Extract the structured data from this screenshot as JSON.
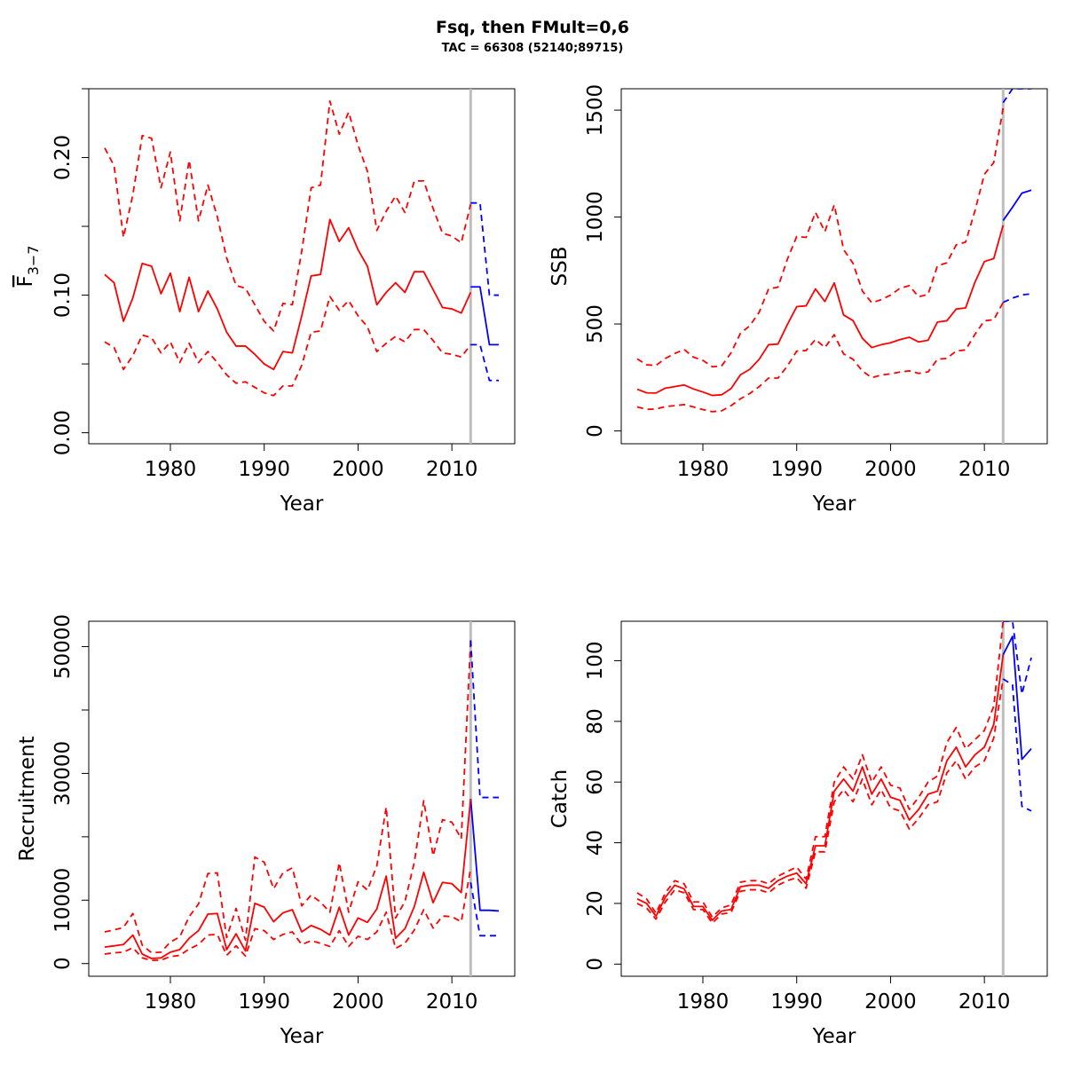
{
  "title": "Fsq, then FMult=0,6",
  "subtitle": "TAC = 66308 (52140;89715)",
  "colors": {
    "historic": "#ff0000",
    "forecast": "#0000ff",
    "divider": "#bebebe"
  },
  "chart_data": [
    {
      "type": "line",
      "ylabel": "F",
      "ylabel_sub": "3−7",
      "xlabel": "Year",
      "xlim": [
        1971.3,
        2016.7
      ],
      "ylim": [
        -0.008,
        0.25
      ],
      "xticks": [
        1980,
        1990,
        2000,
        2010
      ],
      "yticks": [
        0,
        0.05,
        0.1,
        0.15,
        0.2,
        0.25
      ],
      "ytick_labels": [
        "0.00",
        "",
        "0.10",
        "",
        "0.20",
        ""
      ],
      "divider_x": 2012,
      "historic": {
        "x": [
          1973,
          1974,
          1975,
          1976,
          1977,
          1978,
          1979,
          1980,
          1981,
          1982,
          1983,
          1984,
          1985,
          1986,
          1987,
          1988,
          1989,
          1990,
          1991,
          1992,
          1993,
          1994,
          1995,
          1996,
          1997,
          1998,
          1999,
          2000,
          2001,
          2002,
          2003,
          2004,
          2005,
          2006,
          2007,
          2008,
          2009,
          2010,
          2011,
          2012
        ],
        "mid": [
          0.115,
          0.109,
          0.081,
          0.098,
          0.123,
          0.121,
          0.101,
          0.116,
          0.088,
          0.113,
          0.088,
          0.103,
          0.09,
          0.073,
          0.063,
          0.063,
          0.057,
          0.05,
          0.046,
          0.059,
          0.058,
          0.085,
          0.114,
          0.115,
          0.155,
          0.139,
          0.149,
          0.133,
          0.121,
          0.093,
          0.102,
          0.109,
          0.102,
          0.117,
          0.117,
          0.104,
          0.091,
          0.09,
          0.087,
          0.102
        ],
        "lower": [
          0.066,
          0.062,
          0.046,
          0.056,
          0.071,
          0.069,
          0.058,
          0.066,
          0.051,
          0.065,
          0.051,
          0.059,
          0.051,
          0.042,
          0.036,
          0.037,
          0.033,
          0.029,
          0.027,
          0.034,
          0.034,
          0.049,
          0.073,
          0.074,
          0.099,
          0.089,
          0.096,
          0.085,
          0.077,
          0.059,
          0.065,
          0.07,
          0.066,
          0.075,
          0.075,
          0.067,
          0.058,
          0.057,
          0.055,
          0.064
        ],
        "upper": [
          0.207,
          0.194,
          0.142,
          0.173,
          0.216,
          0.214,
          0.178,
          0.204,
          0.154,
          0.198,
          0.154,
          0.18,
          0.157,
          0.127,
          0.107,
          0.105,
          0.093,
          0.081,
          0.074,
          0.094,
          0.093,
          0.132,
          0.178,
          0.18,
          0.241,
          0.217,
          0.233,
          0.209,
          0.19,
          0.147,
          0.161,
          0.172,
          0.16,
          0.183,
          0.183,
          0.163,
          0.145,
          0.143,
          0.138,
          0.166
        ]
      },
      "forecast": {
        "x": [
          2012,
          2013,
          2014,
          2015
        ],
        "mid": [
          0.106,
          0.106,
          0.064,
          0.064
        ],
        "lower": [
          0.064,
          0.064,
          0.038,
          0.038
        ],
        "upper": [
          0.167,
          0.167,
          0.1,
          0.1
        ]
      }
    },
    {
      "type": "line",
      "ylabel": "SSB",
      "xlabel": "Year",
      "xlim": [
        1971.3,
        2016.7
      ],
      "ylim": [
        -60,
        1600
      ],
      "xticks": [
        1980,
        1990,
        2000,
        2010
      ],
      "yticks": [
        0,
        500,
        1000,
        1500
      ],
      "ytick_labels": [
        "0",
        "500",
        "1000",
        "1500"
      ],
      "divider_x": 2012,
      "historic": {
        "x": [
          1973,
          1974,
          1975,
          1976,
          1977,
          1978,
          1979,
          1980,
          1981,
          1982,
          1983,
          1984,
          1985,
          1986,
          1987,
          1988,
          1989,
          1990,
          1991,
          1992,
          1993,
          1994,
          1995,
          1996,
          1997,
          1998,
          1999,
          2000,
          2001,
          2002,
          2003,
          2004,
          2005,
          2006,
          2007,
          2008,
          2009,
          2010,
          2011,
          2012
        ],
        "mid": [
          195,
          178,
          177,
          200,
          207,
          215,
          196,
          182,
          166,
          169,
          198,
          262,
          288,
          335,
          403,
          406,
          497,
          581,
          585,
          664,
          605,
          692,
          542,
          516,
          433,
          390,
          403,
          412,
          427,
          438,
          416,
          424,
          509,
          515,
          570,
          575,
          696,
          792,
          806,
          962
        ],
        "lower": [
          112,
          101,
          102,
          114,
          118,
          123,
          112,
          100,
          90,
          94,
          118,
          150,
          175,
          207,
          247,
          247,
          303,
          373,
          376,
          428,
          390,
          450,
          360,
          335,
          280,
          249,
          261,
          267,
          275,
          281,
          269,
          276,
          335,
          339,
          374,
          379,
          452,
          515,
          520,
          601
        ],
        "upper": [
          337,
          309,
          306,
          339,
          362,
          381,
          345,
          330,
          300,
          304,
          365,
          456,
          492,
          555,
          664,
          672,
          802,
          909,
          905,
          1022,
          932,
          1057,
          848,
          784,
          654,
          599,
          614,
          635,
          667,
          679,
          627,
          639,
          772,
          786,
          870,
          883,
          1030,
          1200,
          1255,
          1510
        ]
      },
      "forecast": {
        "x": [
          2012,
          2013,
          2014,
          2015
        ],
        "mid": [
          984,
          1046,
          1112,
          1126
        ],
        "lower": [
          601,
          621,
          636,
          641
        ],
        "upper": [
          1535,
          1600,
          1600,
          1600
        ]
      }
    },
    {
      "type": "line",
      "ylabel": "Recruitment",
      "xlabel": "Year",
      "xlim": [
        1971.3,
        2016.7
      ],
      "ylim": [
        -2000,
        54000
      ],
      "xticks": [
        1980,
        1990,
        2000,
        2010
      ],
      "yticks": [
        0,
        10000,
        20000,
        30000,
        40000,
        50000
      ],
      "ytick_labels": [
        "0",
        "10000",
        "",
        "30000",
        "",
        "50000"
      ],
      "divider_x": 2012,
      "historic": {
        "x": [
          1973,
          1974,
          1975,
          1976,
          1977,
          1978,
          1979,
          1980,
          1981,
          1982,
          1983,
          1984,
          1985,
          1986,
          1987,
          1988,
          1989,
          1990,
          1991,
          1992,
          1993,
          1994,
          1995,
          1996,
          1997,
          1998,
          1999,
          2000,
          2001,
          2002,
          2003,
          2004,
          2005,
          2006,
          2007,
          2008,
          2009,
          2010,
          2011,
          2012
        ],
        "mid": [
          2600,
          2800,
          3000,
          4500,
          1500,
          800,
          900,
          1800,
          2200,
          4000,
          5200,
          7800,
          7900,
          2200,
          4700,
          2000,
          9500,
          8900,
          6600,
          8000,
          8500,
          5000,
          6000,
          5400,
          4500,
          8900,
          4500,
          7200,
          6500,
          8600,
          13800,
          4000,
          5500,
          9000,
          14400,
          9600,
          12800,
          12600,
          11200,
          26000
        ],
        "lower": [
          1500,
          1700,
          1800,
          2500,
          900,
          500,
          550,
          1100,
          1300,
          2300,
          3000,
          4500,
          4600,
          1300,
          2800,
          1200,
          5500,
          5200,
          3800,
          4600,
          5000,
          3000,
          3600,
          3200,
          2700,
          5200,
          2700,
          4300,
          3800,
          5000,
          8100,
          2400,
          3200,
          5300,
          8500,
          5600,
          7500,
          7400,
          6600,
          15000
        ],
        "upper": [
          5000,
          5300,
          5700,
          7900,
          2900,
          1700,
          1800,
          3400,
          4200,
          7400,
          9400,
          14200,
          14300,
          4100,
          8700,
          3700,
          16800,
          16000,
          11800,
          14300,
          15100,
          9100,
          10800,
          9700,
          8100,
          15900,
          8100,
          12900,
          11600,
          15400,
          24700,
          7200,
          9800,
          16000,
          25700,
          17000,
          22700,
          22300,
          19700,
          51000
        ]
      },
      "forecast": {
        "x": [
          2012,
          2013,
          2014,
          2015
        ],
        "mid": [
          26000,
          8400,
          8400,
          8300
        ],
        "lower": [
          12800,
          4400,
          4400,
          4400
        ],
        "upper": [
          51000,
          26200,
          26200,
          26200
        ]
      }
    },
    {
      "type": "line",
      "ylabel": "Catch",
      "xlabel": "Year",
      "xlim": [
        1971.3,
        2016.7
      ],
      "ylim": [
        -4,
        113
      ],
      "xticks": [
        1980,
        1990,
        2000,
        2010
      ],
      "yticks": [
        0,
        20,
        40,
        60,
        80,
        100
      ],
      "ytick_labels": [
        "0",
        "20",
        "40",
        "60",
        "80",
        "100"
      ],
      "divider_x": 2012,
      "historic": {
        "x": [
          1973,
          1974,
          1975,
          1976,
          1977,
          1978,
          1979,
          1980,
          1981,
          1982,
          1983,
          1984,
          1985,
          1986,
          1987,
          1988,
          1989,
          1990,
          1991,
          1992,
          1993,
          1994,
          1995,
          1996,
          1997,
          1998,
          1999,
          2000,
          2001,
          2002,
          2003,
          2004,
          2005,
          2006,
          2007,
          2008,
          2009,
          2010,
          2011,
          2012
        ],
        "mid": [
          21.5,
          20.0,
          15.8,
          22.0,
          26.0,
          24.8,
          19.0,
          19.0,
          14.5,
          17.5,
          18.0,
          25.5,
          26.0,
          26.0,
          25.0,
          27.5,
          29.0,
          30.0,
          26.5,
          39.0,
          39.0,
          57.0,
          61.0,
          57.0,
          65.0,
          56.0,
          61.0,
          55.0,
          54.0,
          47.5,
          51.0,
          56.0,
          57.0,
          67.0,
          71.5,
          65.0,
          69.0,
          71.5,
          79.0,
          102.0
        ],
        "lower": [
          20.0,
          18.5,
          14.8,
          20.5,
          24.5,
          23.5,
          18.0,
          18.0,
          13.5,
          16.5,
          17.0,
          24.0,
          24.5,
          24.5,
          23.5,
          26.0,
          27.5,
          28.5,
          25.0,
          37.0,
          37.0,
          53.5,
          57.5,
          53.5,
          61.0,
          52.5,
          57.5,
          51.5,
          50.5,
          44.5,
          48.0,
          52.5,
          53.5,
          63.0,
          67.0,
          61.0,
          65.0,
          67.0,
          74.5,
          94.0
        ],
        "upper": [
          23.5,
          21.5,
          16.8,
          23.5,
          27.5,
          26.5,
          20.5,
          20.5,
          15.5,
          18.5,
          19.5,
          27.0,
          27.5,
          27.5,
          26.5,
          29.0,
          30.5,
          32.0,
          28.0,
          42.0,
          42.0,
          60.0,
          65.0,
          61.0,
          69.0,
          60.0,
          65.0,
          59.0,
          58.0,
          51.0,
          55.0,
          60.0,
          62.0,
          73.0,
          78.0,
          71.0,
          74.0,
          77.0,
          85.0,
          113.0
        ]
      },
      "forecast": {
        "x": [
          2012,
          2013,
          2014,
          2015
        ],
        "mid": [
          102.0,
          108.0,
          67.5,
          71.0
        ],
        "lower": [
          94.0,
          92.0,
          52.0,
          50.5
        ],
        "upper": [
          113.0,
          113.0,
          89.0,
          101.0
        ]
      }
    }
  ]
}
